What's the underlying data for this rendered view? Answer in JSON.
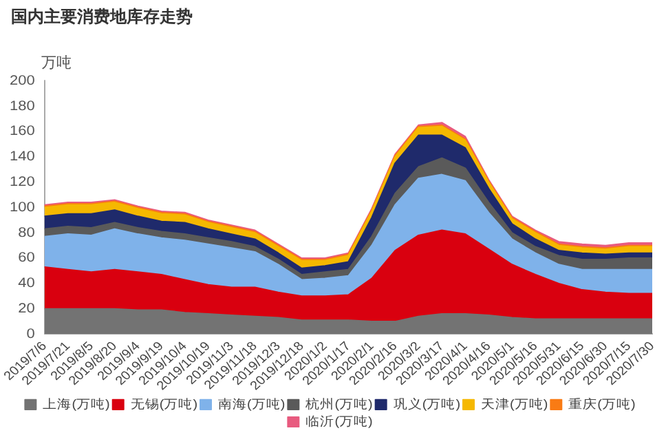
{
  "chart_data": {
    "type": "area",
    "title": "国内主要消费地库存走势",
    "ylabel": "万吨",
    "stacked": true,
    "legend": "bottom",
    "grid": false,
    "marker": "none",
    "categories": [
      "2019/7/6",
      "2019/7/21",
      "2019/8/5",
      "2019/8/20",
      "2019/9/4",
      "2019/9/19",
      "2019/10/4",
      "2019/10/19",
      "2019/11/3",
      "2019/11/18",
      "2019/12/3",
      "2019/12/18",
      "2020/1/2",
      "2020/1/17",
      "2020/2/1",
      "2020/2/16",
      "2020/3/2",
      "2020/3/17",
      "2020/4/1",
      "2020/4/16",
      "2020/5/1",
      "2020/5/16",
      "2020/5/31",
      "2020/6/15",
      "2020/6/30",
      "2020/7/15",
      "2020/7/30"
    ],
    "ylim": [
      0,
      200
    ],
    "yticks": [
      0,
      20,
      40,
      60,
      80,
      100,
      120,
      140,
      160,
      180,
      200
    ],
    "series": [
      {
        "name": "上海(万吨)",
        "color": "#737373",
        "values": [
          20,
          20,
          20,
          20,
          19,
          19,
          17,
          16,
          15,
          14,
          13,
          11,
          11,
          11,
          10,
          10,
          14,
          16,
          16,
          15,
          13,
          12,
          12,
          12,
          12,
          12,
          12
        ]
      },
      {
        "name": "无锡(万吨)",
        "color": "#d9000f",
        "values": [
          33,
          31,
          29,
          31,
          30,
          28,
          26,
          23,
          22,
          23,
          20,
          19,
          19,
          20,
          34,
          56,
          64,
          66,
          63,
          52,
          42,
          35,
          28,
          23,
          21,
          20,
          20
        ]
      },
      {
        "name": "南海(万吨)",
        "color": "#7fb2ea",
        "values": [
          24,
          28,
          29,
          32,
          30,
          29,
          31,
          32,
          31,
          28,
          22,
          13,
          14,
          15,
          26,
          36,
          45,
          44,
          42,
          29,
          20,
          17,
          15,
          16,
          18,
          19,
          19
        ]
      },
      {
        "name": "杭州(万吨)",
        "color": "#5a5a5a",
        "values": [
          6,
          6,
          6,
          5,
          5,
          5,
          5,
          5,
          5,
          4,
          4,
          4,
          5,
          5,
          7,
          9,
          9,
          13,
          10,
          8,
          5,
          5,
          7,
          8,
          8,
          9,
          9
        ]
      },
      {
        "name": "巩义(万吨)",
        "color": "#1f2a6b",
        "values": [
          10,
          10,
          11,
          10,
          9,
          8,
          9,
          7,
          6,
          6,
          5,
          5,
          5,
          6,
          15,
          24,
          25,
          18,
          16,
          11,
          7,
          6,
          4,
          5,
          4,
          4,
          4
        ]
      },
      {
        "name": "天津(万吨)",
        "color": "#f5b800",
        "values": [
          7,
          7,
          7,
          6,
          6,
          6,
          6,
          5,
          5,
          5,
          5,
          6,
          4,
          5,
          5,
          5,
          6,
          7,
          6,
          5,
          4,
          5,
          4,
          4,
          4,
          5,
          5
        ]
      },
      {
        "name": "重庆(万吨)",
        "color": "#f97b14",
        "values": [
          1,
          1,
          1,
          1,
          1,
          1,
          1,
          1,
          1,
          1,
          1,
          1,
          1,
          1,
          1,
          1,
          1,
          1,
          1,
          1,
          1,
          1,
          1,
          1,
          1,
          1,
          1
        ]
      },
      {
        "name": "临沂(万吨)",
        "color": "#e85b7f",
        "values": [
          1,
          1,
          1,
          1,
          1,
          1,
          1,
          1,
          1,
          1,
          1,
          1,
          1,
          1,
          1,
          1,
          1,
          2,
          2,
          1,
          1,
          1,
          2,
          2,
          2,
          2,
          2
        ]
      }
    ]
  }
}
